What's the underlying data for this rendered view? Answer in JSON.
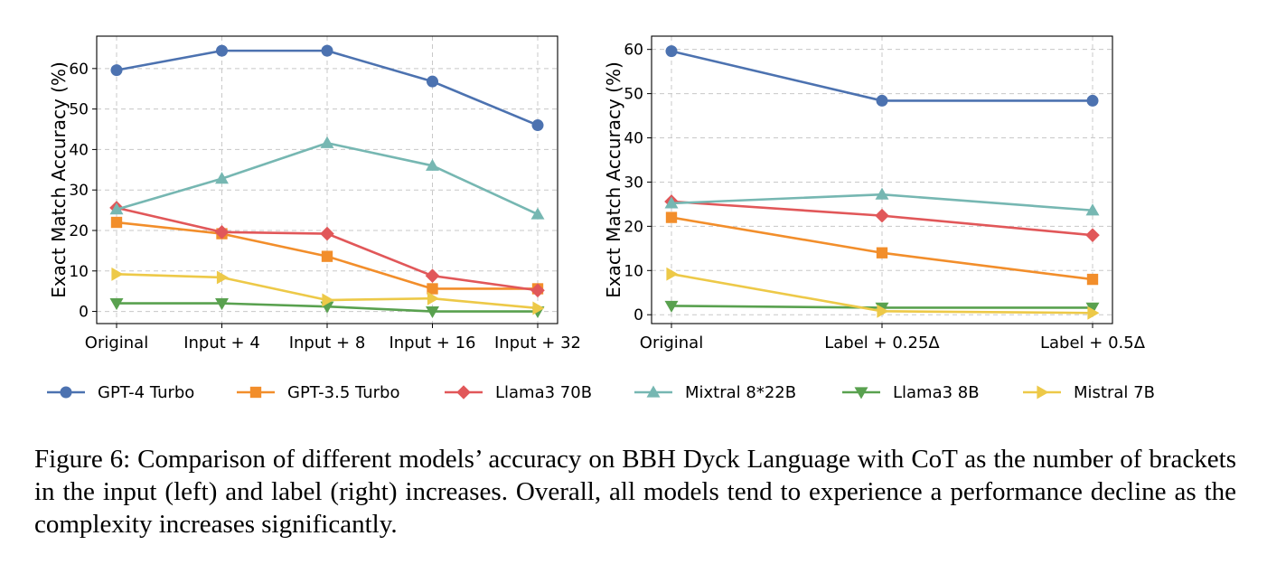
{
  "chart_data": [
    {
      "type": "line",
      "panel": "left",
      "title": "",
      "xlabel": "",
      "ylabel": "Exact Match Accuracy (%)",
      "categories": [
        "Original",
        "Input + 4",
        "Input + 8",
        "Input + 16",
        "Input + 32"
      ],
      "ylim": [
        -3,
        68
      ],
      "yticks": [
        0,
        10,
        20,
        30,
        40,
        50,
        60
      ],
      "grid": true,
      "series": [
        {
          "name": "GPT-4 Turbo",
          "values": [
            59.6,
            64.4,
            64.4,
            56.8,
            46.0
          ]
        },
        {
          "name": "GPT-3.5 Turbo",
          "values": [
            22.0,
            19.2,
            13.6,
            5.6,
            5.6
          ]
        },
        {
          "name": "Llama3 70B",
          "values": [
            25.6,
            19.6,
            19.2,
            8.8,
            5.2
          ]
        },
        {
          "name": "Mixtral 8*22B",
          "values": [
            25.2,
            32.8,
            41.6,
            36.0,
            24.0
          ]
        },
        {
          "name": "Llama3 8B",
          "values": [
            2.0,
            2.0,
            1.2,
            0.0,
            0.0
          ]
        },
        {
          "name": "Mistral 7B",
          "values": [
            9.2,
            8.4,
            2.8,
            3.2,
            0.8
          ]
        }
      ]
    },
    {
      "type": "line",
      "panel": "right",
      "title": "",
      "xlabel": "",
      "ylabel": "Exact Match Accuracy (%)",
      "categories": [
        "Original",
        "Label + 0.25Δ",
        "Label + 0.5Δ"
      ],
      "ylim": [
        -2,
        63
      ],
      "yticks": [
        0,
        10,
        20,
        30,
        40,
        50,
        60
      ],
      "grid": true,
      "series": [
        {
          "name": "GPT-4 Turbo",
          "values": [
            59.6,
            48.4,
            48.4
          ]
        },
        {
          "name": "GPT-3.5 Turbo",
          "values": [
            22.0,
            14.0,
            8.0
          ]
        },
        {
          "name": "Llama3 70B",
          "values": [
            25.6,
            22.4,
            18.0
          ]
        },
        {
          "name": "Mixtral 8*22B",
          "values": [
            25.2,
            27.2,
            23.6
          ]
        },
        {
          "name": "Llama3 8B",
          "values": [
            2.0,
            1.6,
            1.6
          ]
        },
        {
          "name": "Mistral 7B",
          "values": [
            9.2,
            0.8,
            0.4
          ]
        }
      ]
    }
  ],
  "legend": {
    "placement": "bottom",
    "entries": [
      {
        "name": "GPT-4 Turbo",
        "color": "#4c72b0",
        "marker": "circle"
      },
      {
        "name": "GPT-3.5 Turbo",
        "color": "#f28e2b",
        "marker": "square"
      },
      {
        "name": "Llama3 70B",
        "color": "#e15759",
        "marker": "diamond"
      },
      {
        "name": "Mixtral 8*22B",
        "color": "#76b7b2",
        "marker": "triangle-up"
      },
      {
        "name": "Llama3 8B",
        "color": "#59a14f",
        "marker": "triangle-down"
      },
      {
        "name": "Mistral 7B",
        "color": "#edc948",
        "marker": "triangle-right"
      }
    ]
  },
  "caption": "Figure 6: Comparison of different models’ accuracy on BBH Dyck Language with CoT as the number of brackets in the input (left) and label (right) increases. Overall, all models tend to experience a performance decline as the complexity increases significantly."
}
